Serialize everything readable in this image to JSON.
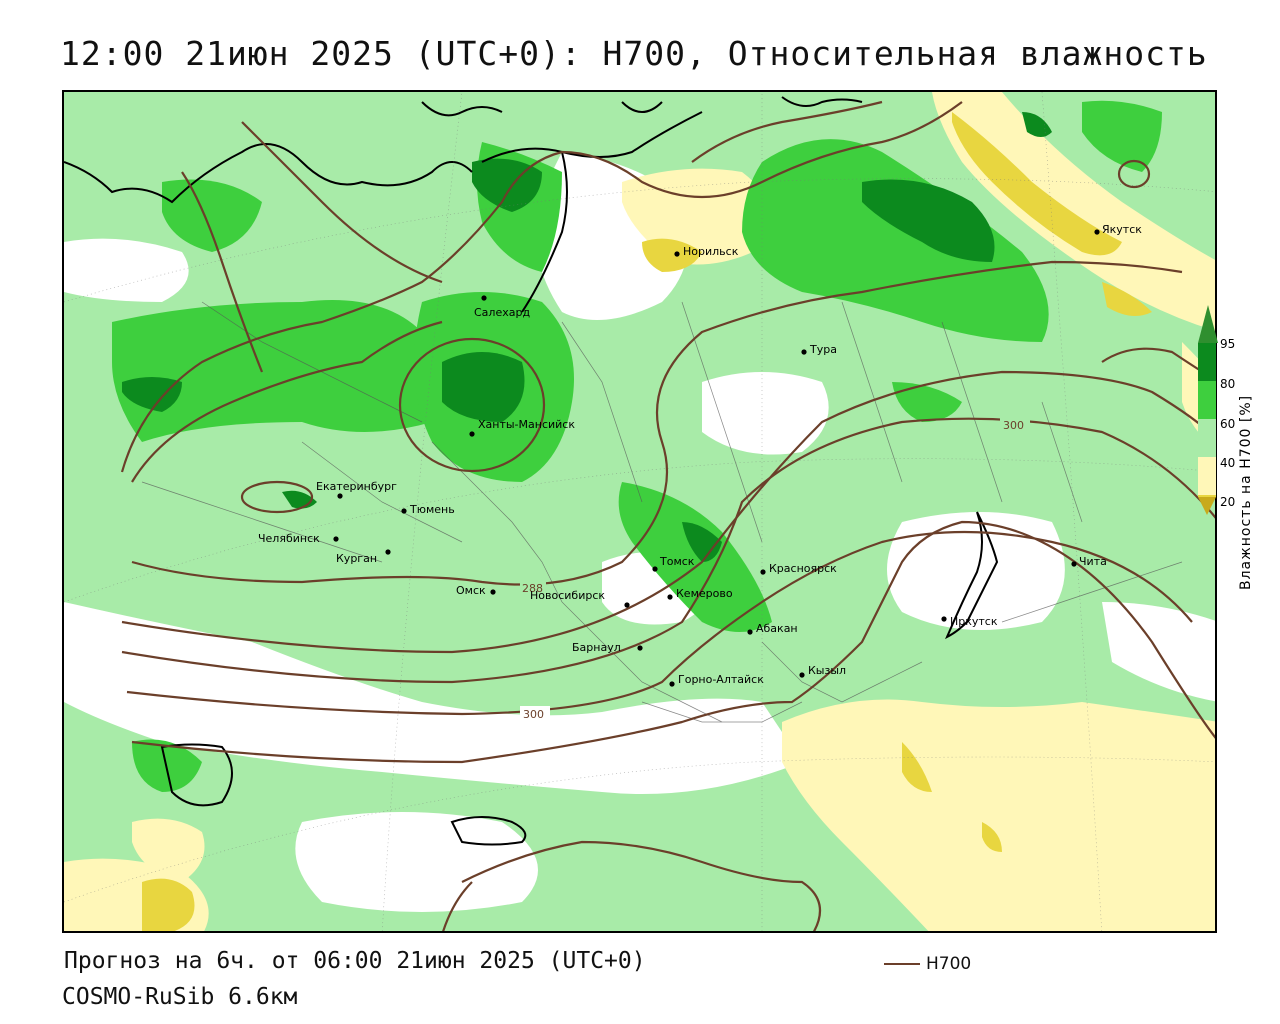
{
  "title": "12:00 21июн 2025 (UTC+0): H700, Относительная влажность",
  "footer": {
    "forecast": "Прогноз на 6ч. от 06:00 21июн 2025 (UTC+0)",
    "model": "COSMO-RuSib 6.6км"
  },
  "legend": {
    "line_label": "H700",
    "line_color": "#6b3f2a"
  },
  "colorbar": {
    "title": "Влажность на H700 [%]",
    "ticks": [
      "95",
      "80",
      "60",
      "40",
      "20"
    ],
    "colors": [
      "#2f8f2f",
      "#0c8a1e",
      "#3ecf3e",
      "#a8eba8",
      "#ffffff",
      "#fff7b8",
      "#e8d640",
      "#c8aa1c"
    ]
  },
  "contour_labels": [
    "300",
    "288",
    "300"
  ],
  "cities": [
    {
      "name": "Норильск"
    },
    {
      "name": "Якутск"
    },
    {
      "name": "Салехард"
    },
    {
      "name": "Тура"
    },
    {
      "name": "Ханты-Мансийск"
    },
    {
      "name": "Екатеринбург"
    },
    {
      "name": "Тюмень"
    },
    {
      "name": "Челябинск"
    },
    {
      "name": "Курган"
    },
    {
      "name": "Омск"
    },
    {
      "name": "Новосибирск"
    },
    {
      "name": "Томск"
    },
    {
      "name": "Кемерово"
    },
    {
      "name": "Красноярск"
    },
    {
      "name": "Абакан"
    },
    {
      "name": "Барнаул"
    },
    {
      "name": "Горно-Алтайск"
    },
    {
      "name": "Кызыл"
    },
    {
      "name": "Иркутск"
    },
    {
      "name": "Чита"
    }
  ]
}
